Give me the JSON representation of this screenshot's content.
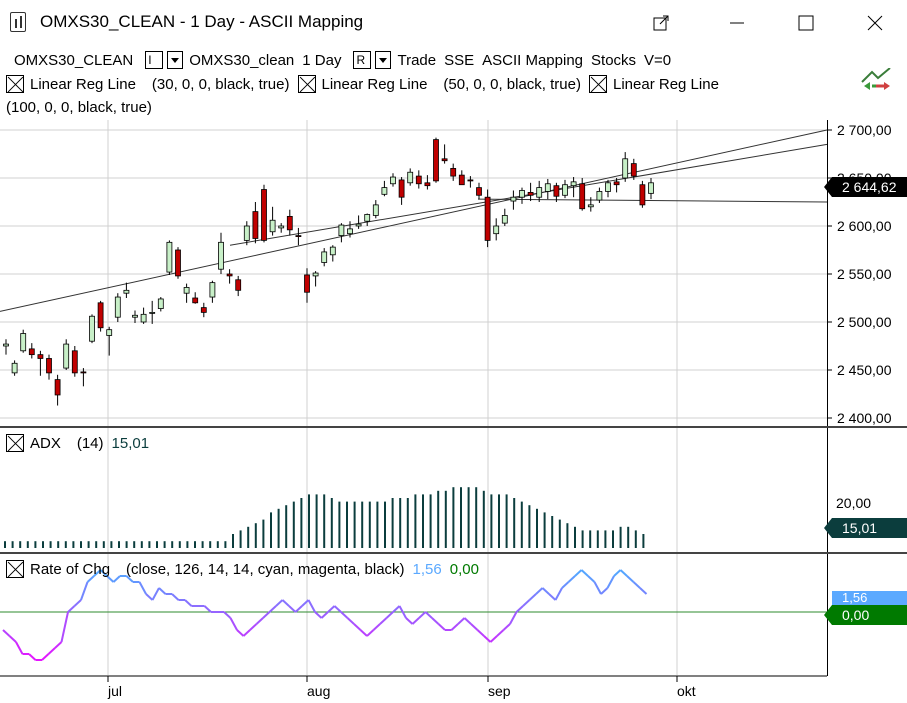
{
  "window": {
    "title": "OMXS30_CLEAN - 1 Day - ASCII Mapping",
    "icon": "chart-app-icon",
    "buttons": [
      "popout-icon",
      "minimize-icon",
      "maximize-icon",
      "close-icon"
    ]
  },
  "legend": {
    "symbol": "OMXS30_CLEAN",
    "bar_type": "I",
    "symbol2": "OMXS30_clean",
    "interval": "1 Day",
    "range_type": "R",
    "mode": "Trade",
    "exchange": "SSE",
    "mapping": "ASCII Mapping",
    "category": "Stocks",
    "volume": "V=0",
    "indicators": [
      {
        "name": "Linear Reg Line",
        "params": "(30,  0,  0,  black,  true)"
      },
      {
        "name": "Linear Reg Line",
        "params": "(50,  0,  0,  black,  true)"
      },
      {
        "name": "Linear Reg Line",
        "params": "(100,  0,  0,  black,  true)"
      }
    ]
  },
  "price_axis": {
    "labels": [
      "2 700,00",
      "2 650,00",
      "2 600,00",
      "2 550,00",
      "2 500,00",
      "2 450,00",
      "2 400,00"
    ],
    "last_price": "2 644,62",
    "last_price_color": "#000000"
  },
  "adx_pane": {
    "name": "ADX",
    "params": "(14)",
    "value": "15,01",
    "value_color": "#0b3d3d",
    "axis_label": "20,00"
  },
  "roc_pane": {
    "name": "Rate of Chg",
    "params": "(close,  126,  14,  14,  cyan,  magenta,  black)",
    "value1": "1,56",
    "value1_color": "#5ba9ff",
    "value2": "0,00",
    "value2_color": "#007a00"
  },
  "time_axis": {
    "labels": [
      "jul",
      "aug",
      "sep",
      "okt"
    ]
  },
  "colors": {
    "up_candle": "#c8f0c8",
    "down_candle": "#c00000",
    "adx_bar": "#0b3d3d",
    "grid": "#d0d0d0",
    "zero_line": "#2e8b2e"
  },
  "chart_data": {
    "type": "candlestick",
    "y_range": [
      2400,
      2700
    ],
    "candles": [
      {
        "o": 2475,
        "h": 2482,
        "l": 2466,
        "c": 2477
      },
      {
        "o": 2447,
        "h": 2460,
        "l": 2444,
        "c": 2457
      },
      {
        "o": 2470,
        "h": 2492,
        "l": 2468,
        "c": 2488
      },
      {
        "o": 2472,
        "h": 2478,
        "l": 2462,
        "c": 2466
      },
      {
        "o": 2466,
        "h": 2470,
        "l": 2444,
        "c": 2462
      },
      {
        "o": 2462,
        "h": 2466,
        "l": 2440,
        "c": 2447
      },
      {
        "o": 2440,
        "h": 2445,
        "l": 2413,
        "c": 2424
      },
      {
        "o": 2452,
        "h": 2482,
        "l": 2450,
        "c": 2477
      },
      {
        "o": 2470,
        "h": 2475,
        "l": 2443,
        "c": 2447
      },
      {
        "o": 2448,
        "h": 2452,
        "l": 2433,
        "c": 2447
      },
      {
        "o": 2480,
        "h": 2508,
        "l": 2478,
        "c": 2506
      },
      {
        "o": 2520,
        "h": 2522,
        "l": 2490,
        "c": 2494
      },
      {
        "o": 2486,
        "h": 2495,
        "l": 2465,
        "c": 2492
      },
      {
        "o": 2505,
        "h": 2530,
        "l": 2500,
        "c": 2526
      },
      {
        "o": 2530,
        "h": 2541,
        "l": 2525,
        "c": 2533
      },
      {
        "o": 2505,
        "h": 2512,
        "l": 2499,
        "c": 2507
      },
      {
        "o": 2500,
        "h": 2515,
        "l": 2498,
        "c": 2508
      },
      {
        "o": 2510,
        "h": 2522,
        "l": 2498,
        "c": 2510
      },
      {
        "o": 2514,
        "h": 2526,
        "l": 2511,
        "c": 2524
      },
      {
        "o": 2552,
        "h": 2585,
        "l": 2549,
        "c": 2583
      },
      {
        "o": 2575,
        "h": 2578,
        "l": 2545,
        "c": 2548
      },
      {
        "o": 2530,
        "h": 2540,
        "l": 2520,
        "c": 2536
      },
      {
        "o": 2525,
        "h": 2531,
        "l": 2519,
        "c": 2520
      },
      {
        "o": 2515,
        "h": 2520,
        "l": 2505,
        "c": 2510
      },
      {
        "o": 2526,
        "h": 2543,
        "l": 2520,
        "c": 2541
      },
      {
        "o": 2555,
        "h": 2593,
        "l": 2550,
        "c": 2583
      },
      {
        "o": 2550,
        "h": 2555,
        "l": 2540,
        "c": 2548
      },
      {
        "o": 2544,
        "h": 2548,
        "l": 2527,
        "c": 2533
      },
      {
        "o": 2585,
        "h": 2605,
        "l": 2580,
        "c": 2600
      },
      {
        "o": 2615,
        "h": 2625,
        "l": 2582,
        "c": 2587
      },
      {
        "o": 2638,
        "h": 2643,
        "l": 2583,
        "c": 2585
      },
      {
        "o": 2594,
        "h": 2620,
        "l": 2590,
        "c": 2606
      },
      {
        "o": 2598,
        "h": 2603,
        "l": 2593,
        "c": 2600
      },
      {
        "o": 2610,
        "h": 2617,
        "l": 2590,
        "c": 2596
      },
      {
        "o": 2590,
        "h": 2598,
        "l": 2580,
        "c": 2589
      },
      {
        "o": 2549,
        "h": 2556,
        "l": 2520,
        "c": 2531
      },
      {
        "o": 2548,
        "h": 2553,
        "l": 2537,
        "c": 2551
      },
      {
        "o": 2562,
        "h": 2577,
        "l": 2558,
        "c": 2573
      },
      {
        "o": 2570,
        "h": 2580,
        "l": 2563,
        "c": 2578
      },
      {
        "o": 2590,
        "h": 2603,
        "l": 2583,
        "c": 2601
      },
      {
        "o": 2592,
        "h": 2605,
        "l": 2588,
        "c": 2597
      },
      {
        "o": 2600,
        "h": 2611,
        "l": 2597,
        "c": 2602
      },
      {
        "o": 2605,
        "h": 2613,
        "l": 2600,
        "c": 2612
      },
      {
        "o": 2611,
        "h": 2627,
        "l": 2608,
        "c": 2622
      },
      {
        "o": 2633,
        "h": 2647,
        "l": 2631,
        "c": 2640
      },
      {
        "o": 2644,
        "h": 2655,
        "l": 2641,
        "c": 2651
      },
      {
        "o": 2648,
        "h": 2651,
        "l": 2622,
        "c": 2630
      },
      {
        "o": 2645,
        "h": 2660,
        "l": 2642,
        "c": 2656
      },
      {
        "o": 2652,
        "h": 2658,
        "l": 2639,
        "c": 2644
      },
      {
        "o": 2645,
        "h": 2653,
        "l": 2638,
        "c": 2642
      },
      {
        "o": 2690,
        "h": 2692,
        "l": 2645,
        "c": 2647
      },
      {
        "o": 2670,
        "h": 2685,
        "l": 2665,
        "c": 2668
      },
      {
        "o": 2660,
        "h": 2665,
        "l": 2647,
        "c": 2652
      },
      {
        "o": 2653,
        "h": 2658,
        "l": 2645,
        "c": 2643
      },
      {
        "o": 2648,
        "h": 2652,
        "l": 2640,
        "c": 2647
      },
      {
        "o": 2640,
        "h": 2645,
        "l": 2628,
        "c": 2632
      },
      {
        "o": 2630,
        "h": 2638,
        "l": 2578,
        "c": 2585
      },
      {
        "o": 2592,
        "h": 2608,
        "l": 2585,
        "c": 2600
      },
      {
        "o": 2603,
        "h": 2618,
        "l": 2600,
        "c": 2611
      },
      {
        "o": 2626,
        "h": 2637,
        "l": 2617,
        "c": 2630
      },
      {
        "o": 2630,
        "h": 2640,
        "l": 2623,
        "c": 2637
      },
      {
        "o": 2635,
        "h": 2645,
        "l": 2626,
        "c": 2632
      },
      {
        "o": 2630,
        "h": 2647,
        "l": 2625,
        "c": 2640
      },
      {
        "o": 2636,
        "h": 2649,
        "l": 2628,
        "c": 2644
      },
      {
        "o": 2642,
        "h": 2645,
        "l": 2625,
        "c": 2631
      },
      {
        "o": 2632,
        "h": 2648,
        "l": 2629,
        "c": 2643
      },
      {
        "o": 2642,
        "h": 2651,
        "l": 2630,
        "c": 2646
      },
      {
        "o": 2644,
        "h": 2650,
        "l": 2616,
        "c": 2618
      },
      {
        "o": 2620,
        "h": 2630,
        "l": 2615,
        "c": 2622
      },
      {
        "o": 2627,
        "h": 2640,
        "l": 2624,
        "c": 2636
      },
      {
        "o": 2636,
        "h": 2648,
        "l": 2630,
        "c": 2645
      },
      {
        "o": 2646,
        "h": 2650,
        "l": 2635,
        "c": 2643
      },
      {
        "o": 2650,
        "h": 2677,
        "l": 2646,
        "c": 2670
      },
      {
        "o": 2665,
        "h": 2670,
        "l": 2648,
        "c": 2652
      },
      {
        "o": 2643,
        "h": 2647,
        "l": 2619,
        "c": 2622
      },
      {
        "o": 2634,
        "h": 2650,
        "l": 2628,
        "c": 2645
      }
    ],
    "regression_lines": [
      {
        "period": 30,
        "start": 2628,
        "end": 2625
      },
      {
        "period": 50,
        "start": 2580,
        "end": 2685
      },
      {
        "period": 100,
        "start": 2511,
        "end": 2700
      }
    ],
    "adx": [
      13,
      13,
      13,
      13,
      13,
      13,
      13,
      13,
      13,
      13,
      13,
      13,
      13,
      13,
      13,
      13,
      13,
      13,
      13,
      13,
      13,
      13,
      13,
      13,
      13,
      13,
      13,
      13,
      13,
      13,
      15,
      16,
      17,
      18,
      19,
      21,
      22,
      23,
      24,
      25,
      26,
      26,
      26,
      25,
      24,
      24,
      24,
      24,
      24,
      24,
      24,
      25,
      25,
      25,
      26,
      26,
      26,
      27,
      27,
      28,
      28,
      28,
      28,
      27,
      26,
      26,
      26,
      25,
      24,
      23,
      22,
      21,
      20,
      19,
      18,
      17,
      16,
      16,
      16,
      16,
      16,
      17,
      17,
      16,
      15
    ],
    "roc": [
      -3,
      -4,
      -5,
      -7,
      -7,
      -8,
      -8,
      -7,
      -6,
      -5,
      0,
      1,
      2,
      5,
      6,
      7,
      6,
      5,
      6,
      6,
      5,
      5,
      3,
      2,
      4,
      3,
      3,
      2,
      2,
      1,
      1,
      1,
      0,
      0,
      0,
      -1,
      -3,
      -4,
      -3,
      -2,
      -1,
      0,
      1,
      2,
      1,
      0,
      1,
      2,
      0,
      -1,
      0,
      1,
      0,
      -1,
      -2,
      -3,
      -4,
      -3,
      -2,
      -1,
      0,
      1,
      -1,
      -2,
      -1,
      0,
      -1,
      -2,
      -3,
      -3,
      -2,
      -1,
      -2,
      -3,
      -4,
      -5,
      -4,
      -3,
      -2,
      0,
      1,
      2,
      3,
      4,
      3,
      2,
      4,
      5,
      6,
      7,
      6,
      5,
      3,
      4,
      6,
      7,
      6,
      5,
      4,
      3
    ]
  }
}
